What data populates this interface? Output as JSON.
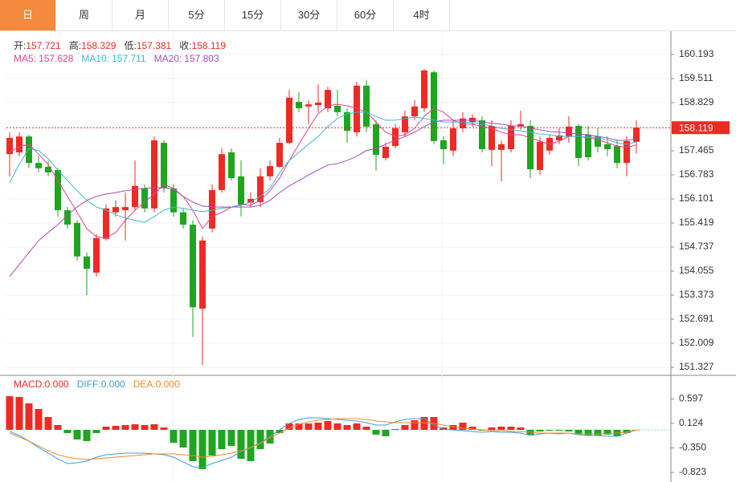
{
  "tabs": {
    "items": [
      "日",
      "周",
      "月",
      "5分",
      "15分",
      "30分",
      "60分",
      "4时"
    ],
    "active": "日"
  },
  "chart_data": [
    {
      "type": "candlestick",
      "ohlc_legend": [
        {
          "label": "开:",
          "value": "157.721"
        },
        {
          "label": "高:",
          "value": "158.329"
        },
        {
          "label": "低:",
          "value": "157.381"
        },
        {
          "label": "收:",
          "value": "158.119"
        }
      ],
      "up_color": "#ee2a24",
      "down_color": "#1fa51f",
      "open": [
        157.37,
        157.42,
        157.87,
        157.12,
        157.01,
        156.92,
        155.78,
        155.42,
        154.47,
        154.01,
        154.97,
        155.72,
        155.78,
        155.87,
        156.4,
        155.83,
        157.69,
        156.4,
        155.72,
        155.37,
        152.99,
        155.26,
        156.35,
        157.42,
        156.74,
        155.99,
        156.01,
        156.74,
        157.01,
        157.69,
        158.85,
        158.72,
        158.76,
        158.67,
        158.74,
        158.56,
        157.99,
        159.31,
        158.22,
        157.26,
        157.6,
        157.99,
        158.44,
        158.67,
        159.69,
        157.76,
        157.47,
        158.1,
        158.28,
        158.33,
        157.49,
        157.49,
        157.51,
        158.15,
        158.17,
        156.92,
        157.47,
        157.76,
        157.87,
        158.17,
        157.92,
        157.87,
        157.65,
        157.6,
        157.12,
        157.721
      ],
      "high": [
        157.99,
        157.99,
        157.92,
        157.31,
        157.19,
        156.97,
        155.87,
        155.49,
        154.58,
        155.1,
        155.94,
        156.06,
        156.28,
        157.19,
        156.51,
        157.87,
        157.76,
        156.51,
        155.83,
        155.49,
        155.03,
        156.51,
        157.53,
        157.53,
        157.19,
        156.28,
        156.97,
        157.19,
        157.83,
        159.19,
        159.13,
        158.9,
        159.35,
        159.28,
        159.19,
        158.67,
        159.42,
        159.47,
        158.33,
        157.69,
        158.22,
        158.6,
        158.9,
        159.78,
        159.74,
        157.87,
        158.33,
        158.56,
        158.49,
        158.44,
        158.33,
        157.76,
        158.33,
        158.6,
        158.33,
        157.87,
        157.92,
        158.1,
        158.44,
        158.22,
        158.17,
        158.1,
        157.87,
        157.76,
        157.87,
        158.329
      ],
      "low": [
        156.74,
        157.31,
        156.97,
        156.85,
        156.74,
        155.6,
        155.26,
        154.35,
        153.37,
        153.9,
        154.92,
        155.6,
        154.92,
        155.78,
        155.72,
        155.72,
        156.28,
        155.6,
        155.26,
        152.19,
        151.4,
        155.15,
        156.28,
        156.62,
        155.6,
        155.87,
        155.87,
        156.62,
        156.97,
        157.65,
        158.56,
        158.22,
        158.56,
        158.56,
        158.44,
        157.69,
        157.87,
        157.99,
        156.9,
        157.19,
        157.53,
        157.87,
        158.33,
        158.56,
        157.65,
        157.08,
        157.31,
        157.99,
        158.15,
        157.42,
        157.03,
        156.6,
        157.42,
        158.06,
        156.69,
        156.78,
        157.35,
        157.65,
        157.69,
        157.03,
        157.19,
        157.42,
        157.31,
        156.97,
        156.74,
        157.381
      ],
      "close": [
        157.83,
        157.87,
        157.12,
        156.97,
        156.85,
        155.78,
        155.37,
        154.47,
        154.12,
        154.99,
        155.83,
        155.87,
        155.87,
        156.47,
        155.83,
        157.76,
        156.4,
        155.72,
        155.37,
        153.03,
        154.92,
        156.35,
        157.37,
        156.69,
        155.94,
        156.1,
        156.74,
        157.03,
        157.69,
        158.97,
        158.67,
        158.78,
        158.83,
        159.19,
        158.56,
        158.03,
        159.31,
        158.15,
        157.35,
        157.58,
        158.1,
        158.44,
        158.72,
        159.74,
        157.74,
        157.51,
        158.1,
        158.38,
        158.4,
        157.51,
        158.17,
        157.65,
        158.17,
        158.22,
        156.94,
        157.72,
        157.83,
        157.9,
        158.15,
        157.26,
        157.28,
        157.58,
        157.51,
        157.12,
        157.74,
        158.119
      ],
      "series": [
        {
          "name": "MA5:",
          "legend_value": "157.628",
          "color": "#e2458c",
          "values": [
            157.42,
            157.58,
            157.65,
            157.37,
            157.08,
            156.62,
            156.17,
            155.72,
            155.26,
            155.03,
            154.99,
            155.15,
            155.49,
            155.78,
            156.01,
            156.24,
            156.51,
            156.4,
            156.17,
            155.78,
            155.26,
            155.6,
            155.72,
            155.87,
            155.94,
            155.92,
            156.06,
            156.33,
            156.69,
            157.19,
            157.65,
            158.1,
            158.51,
            158.74,
            158.78,
            158.74,
            158.67,
            158.56,
            158.28,
            157.99,
            157.87,
            157.92,
            158.1,
            158.44,
            158.67,
            158.56,
            158.33,
            158.22,
            158.22,
            158.15,
            158.1,
            157.99,
            157.92,
            157.92,
            157.83,
            157.74,
            157.65,
            157.74,
            157.87,
            157.87,
            157.83,
            157.78,
            157.69,
            157.6,
            157.56,
            157.628
          ]
        },
        {
          "name": "MA10:",
          "legend_value": "157.711",
          "color": "#3ab8d6",
          "values": [
            156.56,
            157.08,
            157.53,
            157.47,
            157.24,
            156.92,
            156.62,
            156.33,
            156.06,
            155.87,
            155.78,
            155.65,
            155.56,
            155.49,
            155.44,
            155.6,
            155.78,
            155.87,
            155.83,
            155.78,
            155.74,
            155.78,
            155.83,
            155.87,
            155.92,
            156.01,
            156.17,
            156.4,
            156.85,
            157.19,
            157.42,
            157.65,
            157.87,
            158.15,
            158.38,
            158.51,
            158.56,
            158.56,
            158.44,
            158.33,
            158.33,
            158.38,
            158.42,
            158.38,
            158.33,
            158.28,
            158.28,
            158.28,
            158.26,
            158.22,
            158.17,
            158.1,
            158.06,
            158.03,
            157.99,
            157.94,
            157.92,
            157.87,
            157.87,
            157.87,
            157.85,
            157.83,
            157.78,
            157.69,
            157.65,
            157.711
          ]
        },
        {
          "name": "MA20:",
          "legend_value": "157.803",
          "color": "#a64dbd",
          "values": [
            153.9,
            154.24,
            154.58,
            154.92,
            155.15,
            155.37,
            155.65,
            155.87,
            156.06,
            156.17,
            156.24,
            156.28,
            156.33,
            156.37,
            156.4,
            156.42,
            156.42,
            156.37,
            156.17,
            156.01,
            155.9,
            155.87,
            155.87,
            155.87,
            155.87,
            155.87,
            155.92,
            156.06,
            156.28,
            156.47,
            156.62,
            156.78,
            156.92,
            157.06,
            157.1,
            157.19,
            157.31,
            157.47,
            157.53,
            157.65,
            157.76,
            157.87,
            157.99,
            158.15,
            158.28,
            158.33,
            158.33,
            158.33,
            158.33,
            158.28,
            158.24,
            158.22,
            158.17,
            158.17,
            158.1,
            158.06,
            158.01,
            157.99,
            157.97,
            157.94,
            157.92,
            157.87,
            157.83,
            157.76,
            157.76,
            157.803
          ]
        }
      ],
      "ylim": [
        151.168,
        160.829
      ],
      "yticks": [
        160.193,
        159.511,
        158.829,
        157.465,
        156.783,
        156.101,
        155.419,
        154.737,
        154.055,
        153.373,
        152.691,
        152.009,
        151.327
      ],
      "grid": true,
      "last_price_line": true
    },
    {
      "type": "macd",
      "histogram": {
        "name": "MACD:",
        "legend_value": "0.000",
        "color": "#ee2a24",
        "up_color": "#ee2a24",
        "down_color": "#1fa51f",
        "values": [
          0.651,
          0.636,
          0.511,
          0.403,
          0.248,
          0.093,
          -0.062,
          -0.186,
          -0.217,
          -0.062,
          0.062,
          0.077,
          0.093,
          0.108,
          0.093,
          0.108,
          0.046,
          -0.249,
          -0.342,
          -0.605,
          -0.76,
          -0.497,
          -0.373,
          -0.311,
          -0.559,
          -0.605,
          -0.373,
          -0.264,
          -0.062,
          0.124,
          0.124,
          0.124,
          0.139,
          0.17,
          0.124,
          0.093,
          0.124,
          0.062,
          -0.093,
          -0.124,
          0.015,
          0.093,
          0.186,
          0.248,
          0.248,
          0.046,
          0.093,
          0.139,
          0.062,
          -0.016,
          0.046,
          0.062,
          0.062,
          0.046,
          -0.093,
          -0.031,
          -0.016,
          -0.016,
          -0.031,
          -0.093,
          -0.109,
          -0.109,
          -0.093,
          -0.124,
          -0.062,
          0
        ]
      },
      "series": [
        {
          "name": "DIFF:",
          "legend_value": "0.000",
          "color": "#3f9be0",
          "values": [
            -0.031,
            -0.109,
            -0.217,
            -0.342,
            -0.45,
            -0.559,
            -0.652,
            -0.636,
            -0.605,
            -0.528,
            -0.481,
            -0.466,
            -0.45,
            -0.45,
            -0.45,
            -0.466,
            -0.481,
            -0.528,
            -0.621,
            -0.714,
            -0.729,
            -0.652,
            -0.59,
            -0.528,
            -0.419,
            -0.342,
            -0.249,
            -0.124,
            0,
            0.124,
            0.201,
            0.232,
            0.232,
            0.217,
            0.201,
            0.186,
            0.17,
            0.139,
            0.093,
            0.093,
            0.155,
            0.201,
            0.217,
            0.217,
            0.093,
            0.015,
            0,
            -0.016,
            -0.031,
            -0.047,
            -0.031,
            -0.047,
            -0.047,
            -0.062,
            -0.109,
            -0.078,
            -0.062,
            -0.078,
            -0.062,
            -0.093,
            -0.109,
            -0.109,
            -0.124,
            -0.124,
            -0.062,
            0
          ]
        },
        {
          "name": "DEA:",
          "legend_value": "0.000",
          "color": "#f08a24",
          "values": [
            -0.062,
            -0.14,
            -0.217,
            -0.311,
            -0.404,
            -0.481,
            -0.528,
            -0.559,
            -0.574,
            -0.559,
            -0.543,
            -0.528,
            -0.512,
            -0.497,
            -0.481,
            -0.466,
            -0.466,
            -0.466,
            -0.481,
            -0.497,
            -0.528,
            -0.512,
            -0.481,
            -0.45,
            -0.404,
            -0.342,
            -0.264,
            -0.155,
            -0.062,
            0.031,
            0.108,
            0.155,
            0.186,
            0.201,
            0.217,
            0.217,
            0.217,
            0.201,
            0.17,
            0.155,
            0.139,
            0.139,
            0.139,
            0.139,
            0.124,
            0.093,
            0.062,
            0.031,
            0.015,
            0,
            -0.016,
            -0.016,
            -0.031,
            -0.031,
            -0.047,
            -0.062,
            -0.062,
            -0.062,
            -0.062,
            -0.078,
            -0.078,
            -0.078,
            -0.078,
            -0.062,
            -0.047,
            0
          ]
        }
      ],
      "ylim": [
        -0.993,
        1.054
      ],
      "yticks": [
        0.597,
        0.124,
        {
          "value": -0.35,
          "label": "-0.350"
        },
        -0.823
      ]
    }
  ]
}
